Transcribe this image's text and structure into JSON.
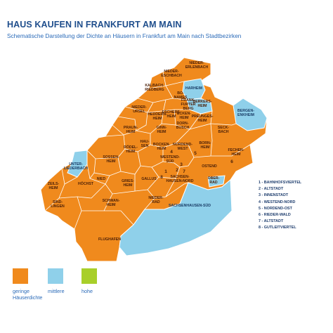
{
  "title": "HAUS KAUFEN IN FRANKFURT AM MAIN",
  "subtitle": "Schematische Darstellung der Dichte an Häusern in Frankfurt am Main nach Stadtbezirken",
  "colors": {
    "low": "#f08a1d",
    "medium": "#8fd0ea",
    "high": "#a8cf2a",
    "border": "#ffffff",
    "title": "#1f4e8c"
  },
  "districts": {
    "nieder_erlenbach": "NIEDER-\nERLENBACH",
    "nieder_eschbach": "NIEDER-\nESCHBACH",
    "kalbach_riedberg": "KALBACH-\nRIEDBERG",
    "harheim": "HARHEIM",
    "bonames": "BO-\nNAMES",
    "nieder_ursel": "NIEDER-\nURSEL",
    "frankfurter_berg": "FRANK-\nFURTER\nBERG",
    "berkersheim": "BERKERS-\nHEIM",
    "bergen_enkheim": "BERGEN-\nENKHEIM",
    "heddernheim": "HEDDERN-\nHEIM",
    "eschersheim": "ESCHERS-\nHEIM",
    "eckenheim": "ECKEN-\nHEIM",
    "preungesheim": "PREUNGES-\nHEIM",
    "praunheim": "PRAUN-\nHEIM",
    "ginnheim": "GINN-\nHEIM",
    "dornbusch": "DORN-\nBUSCH",
    "seckbach": "SECK-\nBACH",
    "hausen": "HAU-\nSEN",
    "roedelheim": "RÖDEL-\nHEIM",
    "bockenheim": "BOCKEN-\nHEIM",
    "nordend_west": "NORDEND-\nWEST",
    "bornheim": "BORN-\nHEIM",
    "fechenheim": "FECHEN-\nHEIM",
    "unterliederbach": "UNTER-\nLIEDERBACH",
    "sossenheim": "SOSSEN-\nHEIM",
    "westend_sued": "WESTEND-\nSÜD",
    "ostend": "OSTEND",
    "zeilsheim": "ZEILS-\nHEIM",
    "hoechst": "HÖCHST",
    "nied": "NIED",
    "griesheim": "GRIES-\nHEIM",
    "gallus": "GALLUS",
    "sachsenhausen_nord": "SACHSEN-\nHAUSEN-NORD",
    "oberrad": "OBER-\nRAD",
    "sindlingen": "SIND-\nLINGEN",
    "schwanheim": "SCHWAN-\nHEIM",
    "niederrad": "NIEDER-\nRAD",
    "sachsenhausen_sued": "SACHSENHAUSEN-SÜD",
    "flughafen": "FLUGHAFEN",
    "n1": "1",
    "n2": "2",
    "n3": "3",
    "n4": "4",
    "n5": "5",
    "n6": "6",
    "n7": "7",
    "n8": "8"
  },
  "numbered_list": [
    "1 - BAHNHOFSVIERTEL",
    "2 - ALTSTADT",
    "3 - INNENSTADT",
    "4 - WESTEND-NORD",
    "5 - NORDEND-OST",
    "6 - RIEDER-WALD",
    "7 - ALTSTADT",
    "8 - GUTLEITVIERTEL"
  ],
  "density_key": {
    "low": "geringe\nHäuserdichte",
    "medium": "mittlere",
    "high": "hohe"
  }
}
